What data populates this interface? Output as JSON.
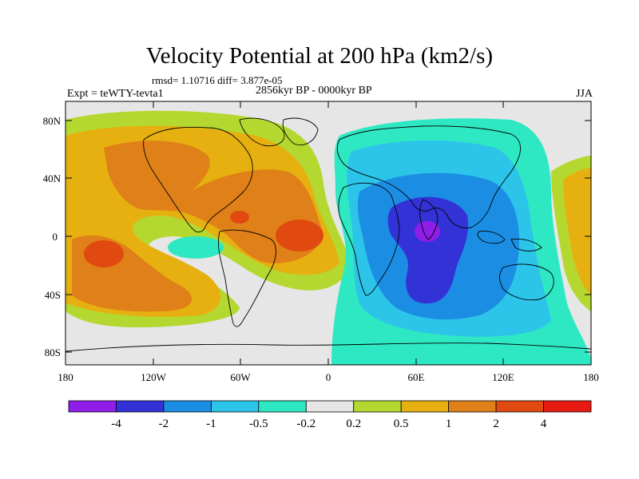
{
  "title": "Velocity Potential at 200 hPa (km2/s)",
  "stats": "rmsd= 1.10716 diff= 3.877e-05",
  "expt": "Expt = teWTY-tevta1",
  "period": "2856kyr BP - 0000kyr BP",
  "season": "JJA",
  "lat_labels": [
    "80N",
    "40N",
    "0",
    "40S",
    "80S"
  ],
  "lon_labels": [
    "180",
    "120W",
    "60W",
    "0",
    "60E",
    "120E",
    "180"
  ],
  "colorbar": {
    "colors": [
      "#8f1ee8",
      "#3232d6",
      "#1b8ee4",
      "#2cc4e8",
      "#2ee8c4",
      "#e6e6e6",
      "#b4d830",
      "#e6b010",
      "#e08018",
      "#e04a10",
      "#e61a10"
    ],
    "labels": [
      "-4",
      "-2",
      "-1",
      "-0.5",
      "-0.2",
      "0.2",
      "0.5",
      "1",
      "2",
      "4"
    ]
  }
}
